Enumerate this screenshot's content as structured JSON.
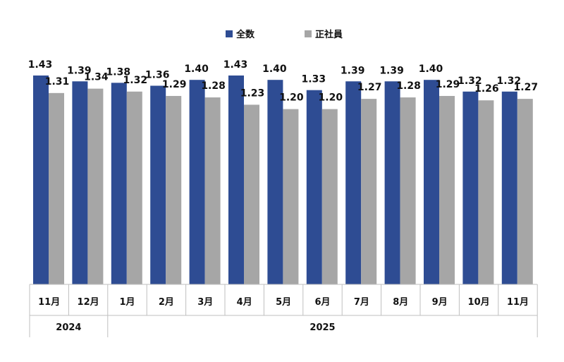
{
  "chart_data": {
    "type": "bar",
    "title": "",
    "xlabel": "",
    "ylabel": "",
    "ylim": [
      0.0,
      1.45
    ],
    "grid": false,
    "legend_position": "top",
    "categories": [
      "11月",
      "12月",
      "1月",
      "2月",
      "3月",
      "4月",
      "5月",
      "6月",
      "7月",
      "8月",
      "9月",
      "10月",
      "11月"
    ],
    "year_groups": [
      {
        "label": "2024",
        "count": 2
      },
      {
        "label": "2025",
        "count": 11
      }
    ],
    "series": [
      {
        "name": "全数",
        "color": "#2E4C93",
        "values": [
          1.43,
          1.39,
          1.38,
          1.36,
          1.4,
          1.43,
          1.4,
          1.33,
          1.39,
          1.39,
          1.4,
          1.32,
          1.32
        ]
      },
      {
        "name": "正社員",
        "color": "#A6A6A6",
        "values": [
          1.31,
          1.34,
          1.32,
          1.29,
          1.28,
          1.23,
          1.2,
          1.2,
          1.27,
          1.28,
          1.29,
          1.26,
          1.27
        ]
      }
    ]
  }
}
